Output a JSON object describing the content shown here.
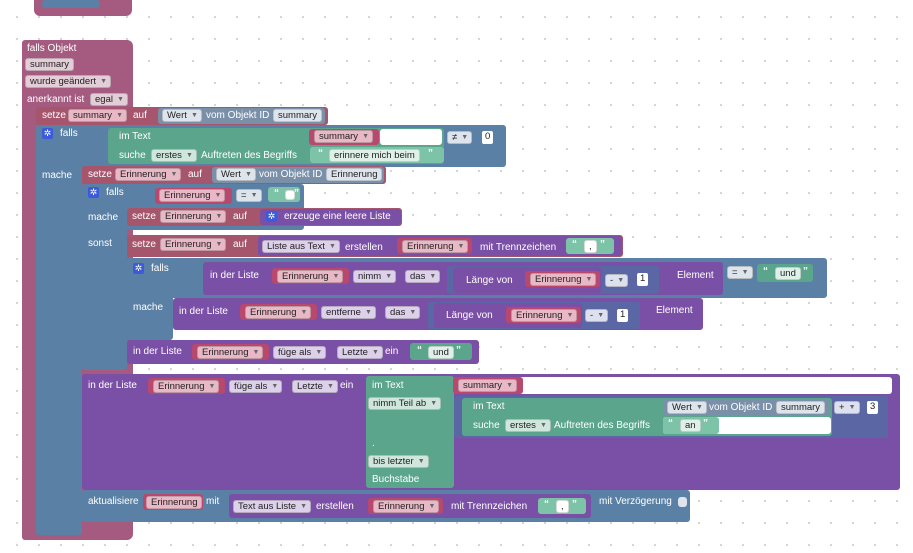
{
  "outer": {
    "falls_objekt": "falls Objekt",
    "object_id": "summary",
    "trigger": "wurde geändert",
    "anerkannt_label": "anerkannt ist",
    "anerkannt_value": "egal"
  },
  "set_summary": {
    "setze": "setze",
    "var": "summary",
    "auf": "auf",
    "wert": "Wert",
    "vom": "vom Objekt ID",
    "obj": "summary"
  },
  "if1": {
    "falls": "falls",
    "im_text": "im Text",
    "text_var": "summary",
    "op": "≠",
    "zero": "0",
    "suche": "suche",
    "erstes": "erstes",
    "auftreten": "Auftreten des Begriffs",
    "term": "erinnere mich beim"
  },
  "mache_label": "mache",
  "set_erinnerung": {
    "setze": "setze",
    "var": "Erinnerung",
    "auf": "auf",
    "wert": "Wert",
    "vom": "vom Objekt ID",
    "obj": "Erinnerung"
  },
  "if2": {
    "falls": "falls",
    "var": "Erinnerung",
    "op": "=",
    "str": "",
    "mache": "mache",
    "setze": "setze",
    "set_var": "Erinnerung",
    "auf": "auf",
    "leere": "erzeuge eine leere Liste",
    "sonst": "sonst"
  },
  "sonst_set": {
    "setze": "setze",
    "var": "Erinnerung",
    "auf": "auf",
    "liste_aus": "Liste aus Text",
    "erstellen": "erstellen",
    "src": "Erinnerung",
    "trenn": "mit Trennzeichen",
    "sep": ","
  },
  "if3": {
    "falls": "falls",
    "in_der_liste": "in der Liste",
    "var": "Erinnerung",
    "nimm": "nimm",
    "das": "das",
    "laenge": "Länge von",
    "lvar": "Erinnerung",
    "minus": "-",
    "one": "1",
    "element": "Element",
    "op": "=",
    "und": "und",
    "mache": "mache",
    "in_der_liste2": "in der Liste",
    "var2": "Erinnerung",
    "entferne": "entferne",
    "das2": "das",
    "laenge2": "Länge von",
    "lvar2": "Erinnerung",
    "minus2": "-",
    "one2": "1",
    "element2": "Element"
  },
  "add_und": {
    "in_der_liste": "in der Liste",
    "var": "Erinnerung",
    "fuege": "füge als",
    "letzte": "Letzte",
    "ein": "ein",
    "und": "und"
  },
  "add_part": {
    "in_der_liste": "in der Liste",
    "var": "Erinnerung",
    "fuege": "füge als",
    "letzte": "Letzte",
    "ein": "ein",
    "im_text": "im Text",
    "text_var": "summary",
    "nimm_teil": "nimm Teil ab",
    "inner_im_text": "im Text",
    "wert": "Wert",
    "vom": "vom Objekt ID",
    "obj": "summary",
    "plus": "+",
    "three": "3",
    "suche": "suche",
    "erstes": "erstes",
    "auftreten": "Auftreten des Begriffs",
    "an": "an",
    "bis_letzter": "bis letzter",
    "buchstabe": "Buchstabe"
  },
  "update": {
    "aktualisiere": "aktualisiere",
    "var": "Erinnerung",
    "mit": "mit",
    "text_aus": "Text aus Liste",
    "erstellen": "erstellen",
    "src": "Erinnerung",
    "trenn": "mit Trennzeichen",
    "sep": ",",
    "verz": "mit Verzögerung"
  }
}
